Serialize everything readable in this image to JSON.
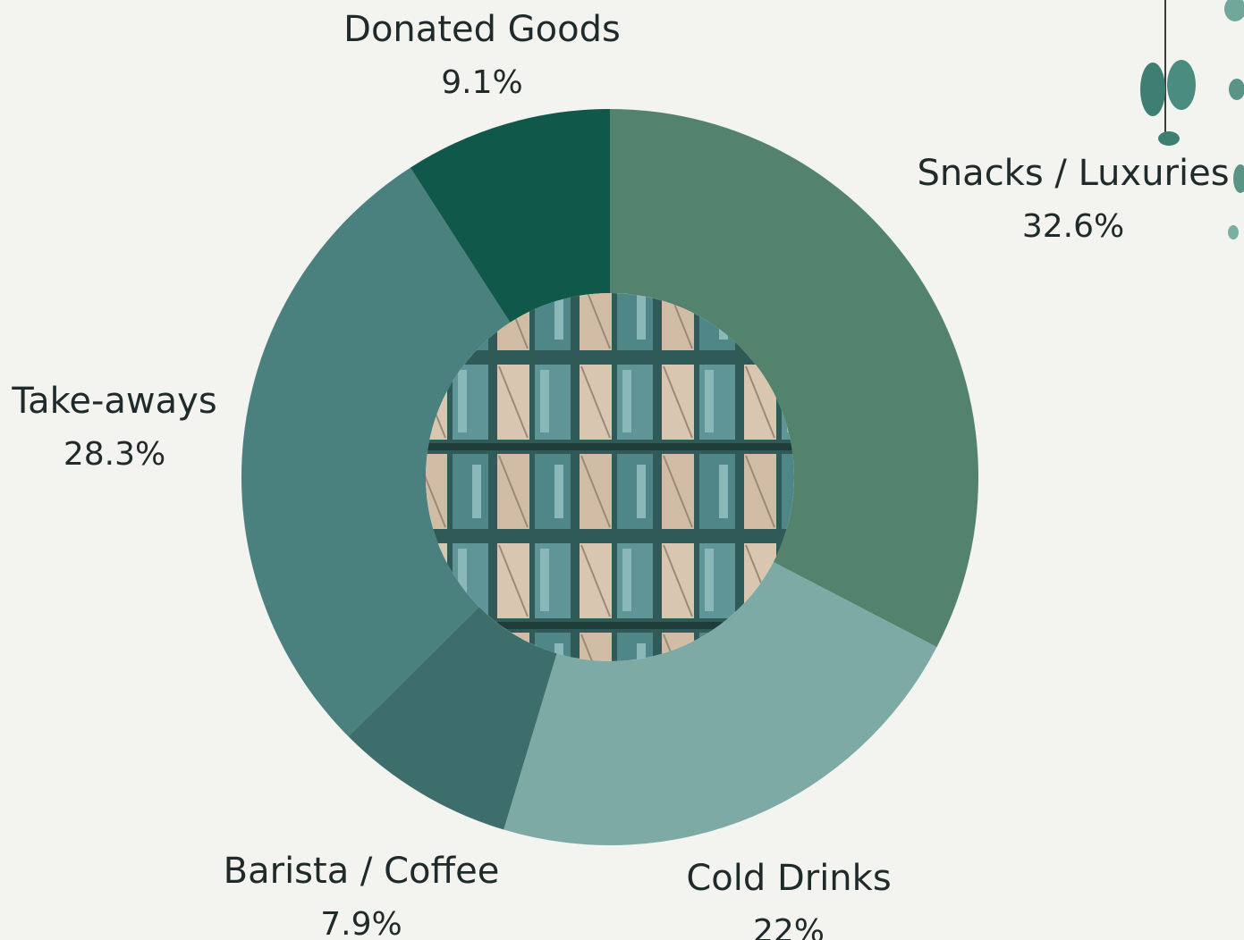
{
  "chart_data": {
    "type": "pie",
    "variant": "donut",
    "categories": [
      "Snacks / Luxuries",
      "Cold Drinks",
      "Barista / Coffee",
      "Take-aways",
      "Donated Goods"
    ],
    "values": [
      32.6,
      22.0,
      7.9,
      28.3,
      9.1
    ],
    "value_labels": [
      "32.6%",
      "22%",
      "7.9%",
      "28.3%",
      "9.1%"
    ],
    "colors": [
      "#53836c",
      "#7eaaa6",
      "#3e6e6b",
      "#4a807e",
      "#10584a"
    ],
    "title": "",
    "legend": "none",
    "center_decoration": "aerial-photo"
  }
}
